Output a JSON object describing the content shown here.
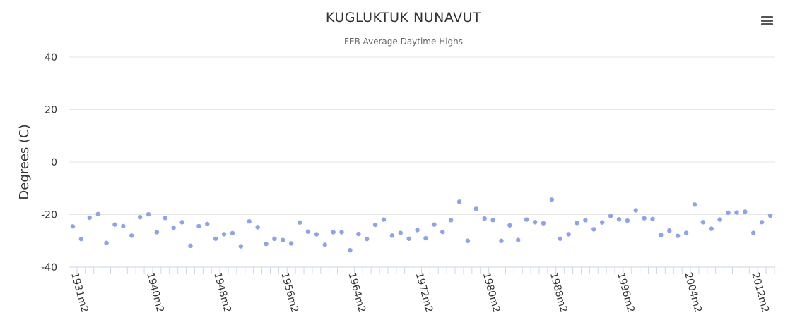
{
  "title": "KUGLUKTUK NUNAVUT",
  "subtitle": "FEB Average Daytime Highs",
  "menu_icon": "hamburger-menu-icon",
  "colors": {
    "point": "#8fa3e8",
    "grid": "#e6e6e6",
    "axis": "#ccd6eb",
    "text": "#333333"
  },
  "chart_data": {
    "type": "scatter",
    "title": "KUGLUKTUK NUNAVUT",
    "subtitle": "FEB Average Daytime Highs",
    "ylabel": "Degrees (C)",
    "xlabel": "",
    "ylim": [
      -40,
      40
    ],
    "yticks": [
      40,
      20,
      0,
      -20,
      -40
    ],
    "xtick_labels": [
      "1931m2",
      "1940m2",
      "1948m2",
      "1956m2",
      "1964m2",
      "1972m2",
      "1980m2",
      "1988m2",
      "1996m2",
      "2004m2",
      "2012m2"
    ],
    "categories": [
      "1931m2",
      "1932m2",
      "1933m2",
      "1934m2",
      "1935m2",
      "1936m2",
      "1937m2",
      "1938m2",
      "1939m2",
      "1940m2",
      "1941m2",
      "1942m2",
      "1943m2",
      "1944m2",
      "1945m2",
      "1946m2",
      "1947m2",
      "1948m2",
      "1949m2",
      "1950m2",
      "1951m2",
      "1952m2",
      "1953m2",
      "1954m2",
      "1955m2",
      "1956m2",
      "1957m2",
      "1958m2",
      "1959m2",
      "1960m2",
      "1961m2",
      "1962m2",
      "1963m2",
      "1964m2",
      "1965m2",
      "1966m2",
      "1967m2",
      "1968m2",
      "1969m2",
      "1970m2",
      "1971m2",
      "1972m2",
      "1973m2",
      "1974m2",
      "1975m2",
      "1976m2",
      "1977m2",
      "1978m2",
      "1979m2",
      "1980m2",
      "1981m2",
      "1982m2",
      "1983m2",
      "1984m2",
      "1985m2",
      "1986m2",
      "1987m2",
      "1988m2",
      "1989m2",
      "1990m2",
      "1991m2",
      "1992m2",
      "1993m2",
      "1994m2",
      "1995m2",
      "1996m2",
      "1997m2",
      "1998m2",
      "1999m2",
      "2000m2",
      "2001m2",
      "2002m2",
      "2003m2",
      "2004m2",
      "2005m2",
      "2006m2",
      "2007m2",
      "2008m2",
      "2009m2",
      "2010m2",
      "2011m2",
      "2012m2",
      "2013m2",
      "2014m2"
    ],
    "values": [
      -24.5,
      -29.3,
      -21.2,
      -19.8,
      -30.8,
      -23.8,
      -24.4,
      -28.0,
      -21.0,
      -19.9,
      -26.7,
      -21.3,
      -25.0,
      -22.9,
      -31.9,
      -24.4,
      -23.6,
      -29.2,
      -27.5,
      -27.1,
      -32.1,
      -22.6,
      -24.8,
      -31.2,
      -29.2,
      -29.7,
      -31.0,
      -23.0,
      -26.5,
      -27.5,
      -31.5,
      -26.7,
      -26.7,
      -33.6,
      -27.4,
      -29.3,
      -23.9,
      -21.9,
      -28.0,
      -27.0,
      -29.2,
      -25.9,
      -29.0,
      -23.8,
      -26.6,
      -22.1,
      -15.1,
      -30.0,
      -17.8,
      -21.5,
      -22.1,
      -30.0,
      -24.1,
      -29.7,
      -21.9,
      -22.9,
      -23.3,
      -14.3,
      -29.2,
      -27.5,
      -23.2,
      -22.1,
      -25.6,
      -23.0,
      -20.5,
      -21.8,
      -22.3,
      -18.4,
      -21.4,
      -21.7,
      -27.8,
      -26.1,
      -28.1,
      -27.0,
      -16.2,
      -22.9,
      -25.4,
      -21.9,
      -19.3,
      -19.2,
      -18.9,
      -27.0,
      -22.9,
      -20.4
    ]
  }
}
